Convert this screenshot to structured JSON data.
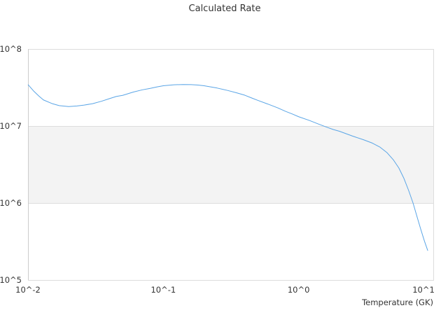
{
  "chart_data": {
    "type": "line",
    "title": "Calculated Rate",
    "xlabel": "Temperature (GK)",
    "ylabel": "",
    "x_scale": "log",
    "y_scale": "log",
    "xlim": [
      0.01,
      10
    ],
    "ylim": [
      100000,
      100000000
    ],
    "x_ticks": [
      0.01,
      0.1,
      1,
      10
    ],
    "y_ticks": [
      100000,
      1000000,
      10000000,
      100000000
    ],
    "x_tick_labels": [
      "10^-2",
      "10^-1",
      "10^0",
      "10^1"
    ],
    "y_tick_labels": [
      "10^5",
      "10^6",
      "10^7",
      "10^8"
    ],
    "grid": true,
    "alternate_band": {
      "from": 1000000,
      "to": 10000000,
      "color": "#f3f3f3"
    },
    "legend": "none",
    "colors": {
      "line": "#5aa5e6",
      "grid": "#dddddd",
      "axis": "#cccccc",
      "band": "#f3f3f3"
    },
    "series": [
      {
        "x": [
          0.01,
          0.011,
          0.012,
          0.013,
          0.015,
          0.017,
          0.02,
          0.023,
          0.026,
          0.03,
          0.035,
          0.04,
          0.045,
          0.05,
          0.06,
          0.07,
          0.08,
          0.09,
          0.1,
          0.12,
          0.14,
          0.16,
          0.18,
          0.2,
          0.25,
          0.3,
          0.35,
          0.4,
          0.45,
          0.5,
          0.6,
          0.7,
          0.8,
          0.9,
          1.0,
          1.2,
          1.4,
          1.6,
          1.8,
          2.0,
          2.5,
          3.0,
          3.5,
          4.0,
          4.5,
          5.0,
          5.5,
          6.0,
          6.5,
          7.0,
          7.5,
          8.0,
          8.5,
          9.0
        ],
        "values": [
          34500000,
          28500000,
          24600000,
          21800000,
          19600000,
          18400000,
          17900000,
          18200000,
          18700000,
          19500000,
          21000000,
          22700000,
          24200000,
          25000000,
          27600000,
          29500000,
          30800000,
          32200000,
          33300000,
          34300000,
          34600000,
          34500000,
          34000000,
          33300000,
          31100000,
          28900000,
          26900000,
          25100000,
          23100000,
          21500000,
          19100000,
          17200000,
          15500000,
          14300000,
          13200000,
          11800000,
          10600000,
          9700000,
          9000000,
          8550000,
          7400000,
          6650000,
          6000000,
          5300000,
          4500000,
          3650000,
          2850000,
          2080000,
          1450000,
          1000000,
          660000,
          450000,
          320000,
          240000
        ]
      }
    ]
  }
}
